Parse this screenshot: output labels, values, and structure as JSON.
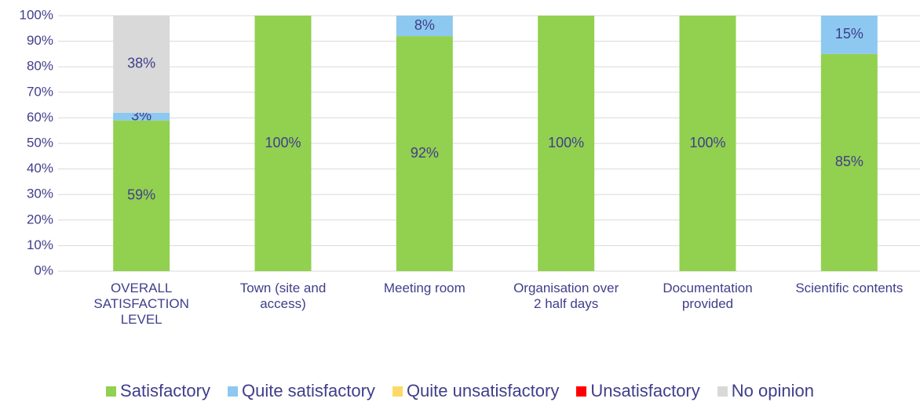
{
  "chart_data": {
    "type": "stacked_bar",
    "categories": [
      "OVERALL SATISFACTION LEVEL",
      "Town (site and access)",
      "Meeting room",
      "Organisation over 2 half days",
      "Documentation provided",
      "Scientific contents"
    ],
    "series": [
      {
        "name": "Satisfactory",
        "color": "#92d050",
        "values": [
          59,
          100,
          92,
          100,
          100,
          85
        ],
        "value_labels": [
          "59%",
          "100%",
          "92%",
          "100%",
          "100%",
          "85%"
        ]
      },
      {
        "name": "Quite satisfactory",
        "color": "#8dc8f0",
        "values": [
          3,
          0,
          8,
          0,
          0,
          15
        ],
        "value_labels": [
          "3%",
          null,
          "8%",
          null,
          null,
          "15%"
        ]
      },
      {
        "name": "Quite unsatisfactory",
        "color": "#ffd966",
        "values": [
          0,
          0,
          0,
          0,
          0,
          0
        ],
        "value_labels": [
          null,
          null,
          null,
          null,
          null,
          null
        ]
      },
      {
        "name": "Unsatisfactory",
        "color": "#ff0000",
        "values": [
          0,
          0,
          0,
          0,
          0,
          0
        ],
        "value_labels": [
          null,
          null,
          null,
          null,
          null,
          null
        ]
      },
      {
        "name": "No opinion",
        "color": "#d9d9d9",
        "values": [
          38,
          0,
          0,
          0,
          0,
          0
        ],
        "value_labels": [
          "38%",
          null,
          null,
          null,
          null,
          null
        ]
      }
    ],
    "ylim": [
      0,
      100
    ],
    "yticks": [
      {
        "value": 0,
        "label": "0%"
      },
      {
        "value": 10,
        "label": "10%"
      },
      {
        "value": 20,
        "label": "20%"
      },
      {
        "value": 30,
        "label": "30%"
      },
      {
        "value": 40,
        "label": "40%"
      },
      {
        "value": 50,
        "label": "50%"
      },
      {
        "value": 60,
        "label": "60%"
      },
      {
        "value": 70,
        "label": "70%"
      },
      {
        "value": 80,
        "label": "80%"
      },
      {
        "value": 90,
        "label": "90%"
      },
      {
        "value": 100,
        "label": "100%"
      }
    ],
    "grid": true,
    "legend": "bottom"
  }
}
